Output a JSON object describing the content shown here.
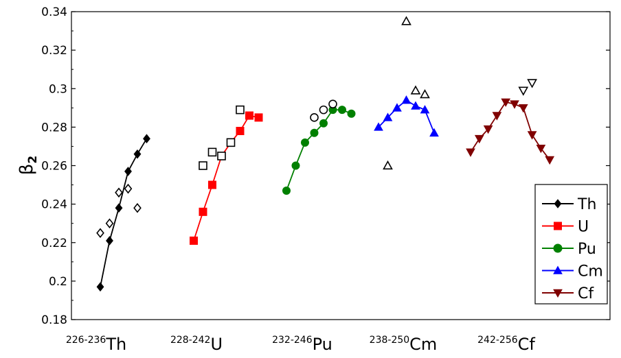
{
  "chart_data": {
    "type": "scatter",
    "title": "",
    "ylabel": "β",
    "ylabel_sub": "2",
    "ylim": [
      0.18,
      0.34
    ],
    "yticks": [
      0.18,
      0.2,
      0.22,
      0.24,
      0.26,
      0.28,
      0.3,
      0.32,
      0.34
    ],
    "ytick_labels": [
      "0.18",
      "0.2",
      "0.22",
      "0.24",
      "0.26",
      "0.28",
      "0.3",
      "0.32",
      "0.34"
    ],
    "x_groups": [
      {
        "sup": "226-236",
        "base": "Th"
      },
      {
        "sup": "228-242",
        "base": "U"
      },
      {
        "sup": "232-246",
        "base": "Pu"
      },
      {
        "sup": "238-250",
        "base": "Cm"
      },
      {
        "sup": "242-256",
        "base": "Cf"
      }
    ],
    "legend_position": "bottom-right",
    "grid": false,
    "series": [
      {
        "name": "Th",
        "color": "#000000",
        "marker": "diamond",
        "filled": true,
        "values": [
          {
            "group": 0,
            "index": 0,
            "y": 0.197
          },
          {
            "group": 0,
            "index": 1,
            "y": 0.221
          },
          {
            "group": 0,
            "index": 2,
            "y": 0.238
          },
          {
            "group": 0,
            "index": 3,
            "y": 0.257
          },
          {
            "group": 0,
            "index": 4,
            "y": 0.266
          },
          {
            "group": 0,
            "index": 5,
            "y": 0.274
          }
        ]
      },
      {
        "name": "U",
        "color": "#ff0000",
        "marker": "square",
        "filled": true,
        "values": [
          {
            "group": 1,
            "index": 0,
            "y": 0.221
          },
          {
            "group": 1,
            "index": 1,
            "y": 0.236
          },
          {
            "group": 1,
            "index": 2,
            "y": 0.25
          },
          {
            "group": 1,
            "index": 3,
            "y": 0.265
          },
          {
            "group": 1,
            "index": 4,
            "y": 0.272
          },
          {
            "group": 1,
            "index": 5,
            "y": 0.278
          },
          {
            "group": 1,
            "index": 6,
            "y": 0.286
          },
          {
            "group": 1,
            "index": 7,
            "y": 0.285
          }
        ]
      },
      {
        "name": "Pu",
        "color": "#008000",
        "marker": "circle",
        "filled": true,
        "values": [
          {
            "group": 2,
            "index": 0,
            "y": 0.247
          },
          {
            "group": 2,
            "index": 1,
            "y": 0.26
          },
          {
            "group": 2,
            "index": 2,
            "y": 0.272
          },
          {
            "group": 2,
            "index": 3,
            "y": 0.277
          },
          {
            "group": 2,
            "index": 4,
            "y": 0.282
          },
          {
            "group": 2,
            "index": 5,
            "y": 0.289
          },
          {
            "group": 2,
            "index": 6,
            "y": 0.289
          },
          {
            "group": 2,
            "index": 7,
            "y": 0.287
          }
        ]
      },
      {
        "name": "Cm",
        "color": "#0000ff",
        "marker": "triangle-up",
        "filled": true,
        "values": [
          {
            "group": 3,
            "index": 0,
            "y": 0.28
          },
          {
            "group": 3,
            "index": 1,
            "y": 0.285
          },
          {
            "group": 3,
            "index": 2,
            "y": 0.29
          },
          {
            "group": 3,
            "index": 3,
            "y": 0.294
          },
          {
            "group": 3,
            "index": 4,
            "y": 0.291
          },
          {
            "group": 3,
            "index": 5,
            "y": 0.289
          },
          {
            "group": 3,
            "index": 6,
            "y": 0.277
          }
        ]
      },
      {
        "name": "Cf",
        "color": "#800000",
        "marker": "triangle-down",
        "filled": true,
        "values": [
          {
            "group": 4,
            "index": 0,
            "y": 0.267
          },
          {
            "group": 4,
            "index": 1,
            "y": 0.274
          },
          {
            "group": 4,
            "index": 2,
            "y": 0.279
          },
          {
            "group": 4,
            "index": 3,
            "y": 0.286
          },
          {
            "group": 4,
            "index": 4,
            "y": 0.293
          },
          {
            "group": 4,
            "index": 5,
            "y": 0.292
          },
          {
            "group": 4,
            "index": 6,
            "y": 0.29
          },
          {
            "group": 4,
            "index": 7,
            "y": 0.276
          },
          {
            "group": 4,
            "index": 8,
            "y": 0.269
          },
          {
            "group": 4,
            "index": 9,
            "y": 0.263
          }
        ]
      }
    ],
    "reference_points": [
      {
        "color": "#000000",
        "marker": "diamond",
        "filled": false,
        "values": [
          {
            "group": 0,
            "index": 0,
            "y": 0.225
          },
          {
            "group": 0,
            "index": 1,
            "y": 0.23
          },
          {
            "group": 0,
            "index": 2,
            "y": 0.246
          },
          {
            "group": 0,
            "index": 3,
            "y": 0.248
          },
          {
            "group": 0,
            "index": 4,
            "y": 0.238
          }
        ]
      },
      {
        "color": "#000000",
        "marker": "square",
        "filled": false,
        "values": [
          {
            "group": 1,
            "index": 1,
            "y": 0.26
          },
          {
            "group": 1,
            "index": 2,
            "y": 0.267
          },
          {
            "group": 1,
            "index": 3,
            "y": 0.265
          },
          {
            "group": 1,
            "index": 4,
            "y": 0.272
          },
          {
            "group": 1,
            "index": 5,
            "y": 0.289
          }
        ]
      },
      {
        "color": "#000000",
        "marker": "circle",
        "filled": false,
        "values": [
          {
            "group": 2,
            "index": 3,
            "y": 0.285
          },
          {
            "group": 2,
            "index": 4,
            "y": 0.289
          },
          {
            "group": 2,
            "index": 5,
            "y": 0.292
          }
        ]
      },
      {
        "color": "#000000",
        "marker": "triangle-up",
        "filled": false,
        "values": [
          {
            "group": 3,
            "index": 1,
            "y": 0.26
          },
          {
            "group": 3,
            "index": 3,
            "y": 0.335
          },
          {
            "group": 3,
            "index": 4,
            "y": 0.299
          },
          {
            "group": 3,
            "index": 5,
            "y": 0.297
          }
        ]
      },
      {
        "color": "#000000",
        "marker": "triangle-down",
        "filled": false,
        "values": [
          {
            "group": 4,
            "index": 6,
            "y": 0.299
          },
          {
            "group": 4,
            "index": 7,
            "y": 0.303
          }
        ]
      }
    ]
  }
}
